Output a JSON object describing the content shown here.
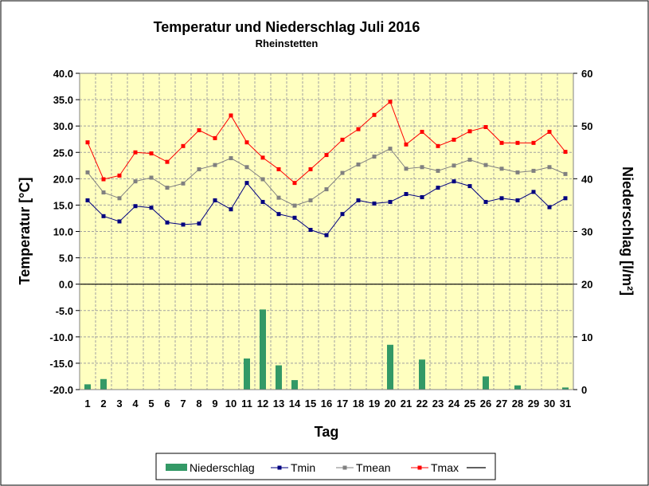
{
  "chart_data": {
    "type": "bar+line",
    "title": "Temperatur und Niederschlag  Juli 2016",
    "subtitle": "Rheinstetten",
    "xlabel": "Tag",
    "ylabel": "Temperatur [°C]",
    "y2label": "Niederschlag [l/m²]",
    "ylim": [
      -20,
      40
    ],
    "y2lim": [
      0,
      60
    ],
    "ytick_labels": [
      "40.0",
      "35.0",
      "30.0",
      "25.0",
      "20.0",
      "15.0",
      "10.0",
      "5.0",
      "0.0",
      "-5.0",
      "-10.0",
      "-15.0",
      "-20.0"
    ],
    "y2tick_labels": [
      "60",
      "50",
      "40",
      "30",
      "20",
      "10",
      "0"
    ],
    "x": [
      1,
      2,
      3,
      4,
      5,
      6,
      7,
      8,
      9,
      10,
      11,
      12,
      13,
      14,
      15,
      16,
      17,
      18,
      19,
      20,
      21,
      22,
      23,
      24,
      25,
      26,
      27,
      28,
      29,
      30,
      31
    ],
    "grid": true,
    "legend_position": "bottom",
    "series": [
      {
        "name": "Niederschlag",
        "axis": "right",
        "kind": "bar",
        "color": "#339966",
        "values": [
          1.0,
          2.0,
          0,
          0,
          0,
          0,
          0,
          0,
          0,
          0,
          5.9,
          15.2,
          4.6,
          1.8,
          0,
          0,
          0,
          0,
          0,
          8.5,
          0,
          5.7,
          0,
          0,
          0,
          2.5,
          0,
          0.8,
          0,
          0,
          0.4
        ]
      },
      {
        "name": "Tmin",
        "axis": "left",
        "kind": "line",
        "color": "#000080",
        "values": [
          15.9,
          12.9,
          11.9,
          14.8,
          14.5,
          11.7,
          11.3,
          11.5,
          15.9,
          14.2,
          19.2,
          15.6,
          13.3,
          12.6,
          10.3,
          9.3,
          13.3,
          15.9,
          15.3,
          15.6,
          17.1,
          16.5,
          18.3,
          19.5,
          18.6,
          15.6,
          16.3,
          15.9,
          17.5,
          14.6,
          16.3
        ]
      },
      {
        "name": "Tmean",
        "axis": "left",
        "kind": "line",
        "color": "#808080",
        "values": [
          21.2,
          17.4,
          16.3,
          19.5,
          20.2,
          18.3,
          19.1,
          21.8,
          22.6,
          23.9,
          22.2,
          19.9,
          16.4,
          14.9,
          15.9,
          18.0,
          21.1,
          22.7,
          24.2,
          25.7,
          21.9,
          22.2,
          21.5,
          22.5,
          23.6,
          22.6,
          21.9,
          21.2,
          21.5,
          22.2,
          20.9
        ]
      },
      {
        "name": "Tmax",
        "axis": "left",
        "kind": "line",
        "color": "#ff0000",
        "values": [
          26.9,
          19.9,
          20.6,
          25.0,
          24.8,
          23.2,
          26.2,
          29.2,
          27.7,
          32.0,
          26.9,
          24.0,
          21.8,
          19.2,
          21.8,
          24.5,
          27.4,
          29.4,
          32.1,
          34.6,
          26.5,
          28.9,
          26.2,
          27.4,
          29.0,
          29.8,
          26.8,
          26.8,
          26.8,
          28.9,
          25.1
        ]
      }
    ],
    "extra_legend_entry": {
      "name": "",
      "color": "#000000"
    }
  }
}
